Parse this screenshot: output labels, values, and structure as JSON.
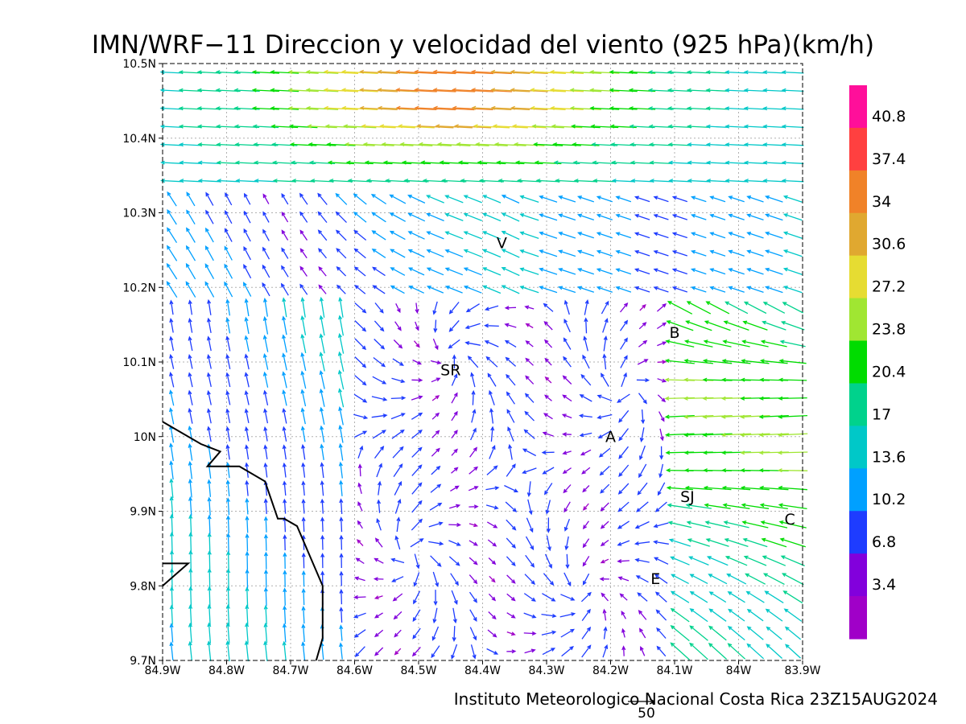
{
  "title": "IMN/WRF−11 Direccion y velocidad del viento (925 hPa)(km/h)",
  "credit": "Instituto Meteorologico Nacional Costa Rica  23Z15AUG2024",
  "reference_vector": {
    "label": "50",
    "speed_kmh": 50
  },
  "axes": {
    "x_ticks": [
      "84.9W",
      "84.8W",
      "84.7W",
      "84.6W",
      "84.5W",
      "84.4W",
      "84.3W",
      "84.2W",
      "84.1W",
      "84W",
      "83.9W"
    ],
    "y_ticks": [
      "10.5N",
      "10.4N",
      "10.3N",
      "10.2N",
      "10.1N",
      "10N",
      "9.9N",
      "9.8N",
      "9.7N"
    ],
    "lon_range": [
      -84.9,
      -83.9
    ],
    "lat_range": [
      9.7,
      10.5
    ],
    "grid": "dotted"
  },
  "colorbar": {
    "labels": [
      "40.8",
      "37.4",
      "34",
      "30.6",
      "27.2",
      "23.8",
      "20.4",
      "17",
      "13.6",
      "10.2",
      "6.8",
      "3.4"
    ],
    "colors": [
      "#ff0f9a",
      "#ff4040",
      "#f08228",
      "#e0a830",
      "#e6dc32",
      "#a0e632",
      "#00dc00",
      "#00d28c",
      "#00c8c8",
      "#00a0ff",
      "#1e3cff",
      "#8200dc",
      "#a000c8"
    ]
  },
  "stations": [
    {
      "code": "V",
      "lon": -84.37,
      "lat": 10.26
    },
    {
      "code": "B",
      "lon": -84.1,
      "lat": 10.14
    },
    {
      "code": "SR",
      "lon": -84.45,
      "lat": 10.09
    },
    {
      "code": "A",
      "lon": -84.2,
      "lat": 10.0
    },
    {
      "code": "SJ",
      "lon": -84.08,
      "lat": 9.92
    },
    {
      "code": "C",
      "lon": -83.92,
      "lat": 9.89
    },
    {
      "code": "E",
      "lon": -84.13,
      "lat": 9.81
    }
  ],
  "coastline": [
    [
      -84.9,
      10.02
    ],
    [
      -84.84,
      9.99
    ],
    [
      -84.81,
      9.98
    ],
    [
      -84.83,
      9.96
    ],
    [
      -84.78,
      9.96
    ],
    [
      -84.74,
      9.94
    ],
    [
      -84.72,
      9.89
    ],
    [
      -84.71,
      9.89
    ],
    [
      -84.69,
      9.88
    ],
    [
      -84.67,
      9.84
    ],
    [
      -84.65,
      9.8
    ],
    [
      -84.65,
      9.73
    ],
    [
      -84.66,
      9.7
    ]
  ],
  "coastline_islet": [
    [
      -84.9,
      9.83
    ],
    [
      -84.86,
      9.83
    ],
    [
      -84.9,
      9.8
    ]
  ]
}
